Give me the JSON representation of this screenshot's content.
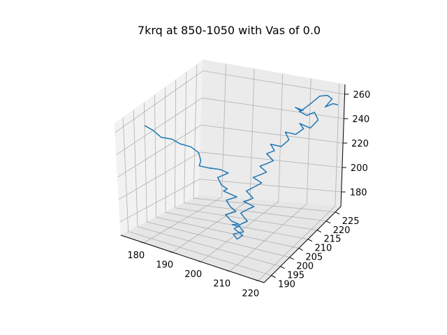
{
  "chart_data": {
    "type": "line",
    "projection": "3d",
    "title": "7krq at 850-1050 with Vas of 0.0",
    "xlabel": "",
    "ylabel": "",
    "zlabel": "",
    "grid": true,
    "legend": "none",
    "xlim": [
      172,
      222
    ],
    "ylim": [
      186,
      228
    ],
    "zlim": [
      168,
      268
    ],
    "x_ticks": [
      "180",
      "190",
      "200",
      "210",
      "220"
    ],
    "y_ticks": [
      "190",
      "195",
      "200",
      "205",
      "210",
      "215",
      "220",
      "225"
    ],
    "z_ticks": [
      "180",
      "200",
      "220",
      "240",
      "260"
    ],
    "series": [
      {
        "color": "#1f77b4",
        "comment_units": "x, y, z triples in data units",
        "points": [
          [
            178,
            192,
            262
          ],
          [
            180,
            193,
            258
          ],
          [
            182,
            194,
            252
          ],
          [
            185,
            195,
            251
          ],
          [
            187,
            196,
            247
          ],
          [
            190,
            197,
            245
          ],
          [
            192,
            198,
            240
          ],
          [
            192,
            199,
            232
          ],
          [
            190,
            201,
            224
          ],
          [
            193,
            203,
            221
          ],
          [
            191,
            205,
            218
          ],
          [
            194,
            206,
            217
          ],
          [
            196,
            207,
            214
          ],
          [
            193,
            206,
            210
          ],
          [
            195,
            205,
            206
          ],
          [
            197,
            205,
            204
          ],
          [
            195,
            206,
            200
          ],
          [
            197,
            207,
            197
          ],
          [
            199,
            207,
            196
          ],
          [
            196,
            206,
            193
          ],
          [
            198,
            205,
            190
          ],
          [
            200,
            205,
            187
          ],
          [
            197,
            204,
            184
          ],
          [
            199,
            204,
            180
          ],
          [
            201,
            205,
            177
          ],
          [
            198,
            206,
            174
          ],
          [
            200,
            207,
            172
          ],
          [
            202,
            206,
            170
          ],
          [
            199,
            205,
            168
          ],
          [
            201,
            204,
            166
          ],
          [
            203,
            204,
            170
          ],
          [
            200,
            204,
            174
          ],
          [
            202,
            205,
            178
          ],
          [
            204,
            205,
            181
          ],
          [
            201,
            206,
            185
          ],
          [
            203,
            207,
            188
          ],
          [
            205,
            207,
            191
          ],
          [
            202,
            206,
            195
          ],
          [
            204,
            205,
            198
          ],
          [
            206,
            205,
            201
          ],
          [
            203,
            206,
            204
          ],
          [
            205,
            207,
            207
          ],
          [
            207,
            208,
            210
          ],
          [
            204,
            208,
            213
          ],
          [
            206,
            209,
            215
          ],
          [
            208,
            209,
            218
          ],
          [
            205,
            210,
            220
          ],
          [
            207,
            211,
            222
          ],
          [
            209,
            211,
            225
          ],
          [
            206,
            212,
            228
          ],
          [
            208,
            213,
            230
          ],
          [
            206,
            214,
            233
          ],
          [
            209,
            215,
            231
          ],
          [
            211,
            216,
            236
          ],
          [
            209,
            217,
            240
          ],
          [
            212,
            218,
            238
          ],
          [
            214,
            219,
            242
          ],
          [
            212,
            220,
            244
          ],
          [
            215,
            221,
            240
          ],
          [
            217,
            222,
            246
          ],
          [
            215,
            223,
            250
          ],
          [
            213,
            222,
            248
          ],
          [
            211,
            221,
            252
          ],
          [
            213,
            220,
            255
          ],
          [
            211,
            219,
            258
          ],
          [
            213,
            219,
            256
          ],
          [
            215,
            221,
            260
          ],
          [
            216,
            224,
            262
          ],
          [
            218,
            225,
            262
          ],
          [
            219,
            226,
            258
          ],
          [
            218,
            224,
            254
          ],
          [
            220,
            225,
            256
          ],
          [
            221,
            226,
            254
          ]
        ]
      }
    ]
  }
}
